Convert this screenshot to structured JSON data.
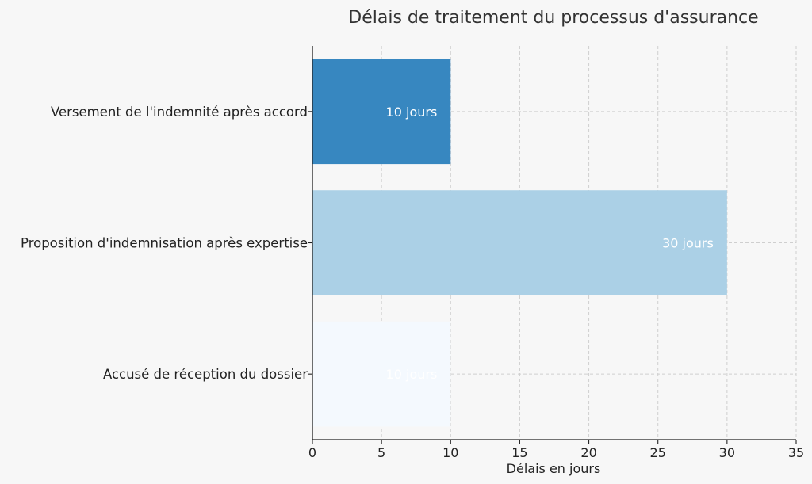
{
  "chart_data": {
    "type": "bar",
    "orientation": "horizontal",
    "title": "Délais de traitement du processus d'assurance",
    "xlabel": "Délais en jours",
    "ylabel": "",
    "xlim": [
      0,
      35
    ],
    "x_ticks": [
      0,
      5,
      10,
      15,
      20,
      25,
      30,
      35
    ],
    "grid": true,
    "categories": [
      "Versement de l'indemnité après accord",
      "Proposition d'indemnisation après expertise",
      "Accusé de réception du dossier"
    ],
    "values": [
      10,
      30,
      10
    ],
    "data_labels": [
      "10 jours",
      "30 jours",
      "10 jours"
    ],
    "colors": [
      "#3787c0",
      "#abd0e6",
      "#f4f9fe"
    ]
  }
}
